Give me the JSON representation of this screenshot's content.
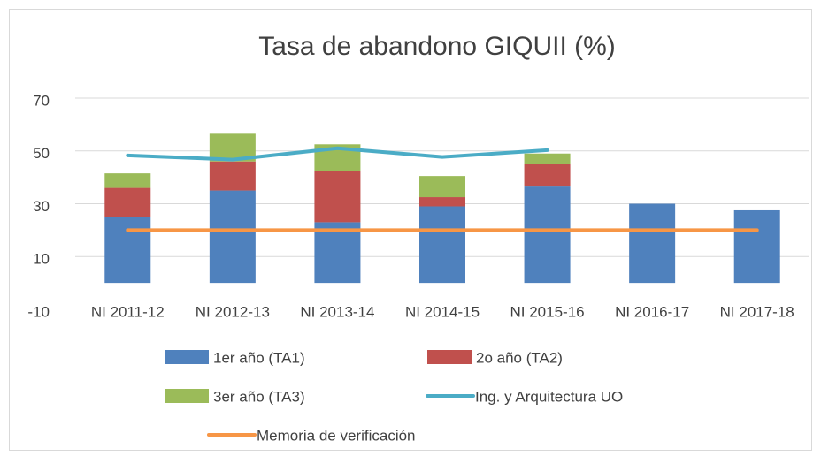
{
  "chart_data": {
    "type": "bar",
    "title": "Tasa de abandono GIQUII (%)",
    "categories": [
      "NI 2011-12",
      "NI 2012-13",
      "NI 2013-14",
      "NI 2014-15",
      "NI 2015-16",
      "NI 2016-17",
      "NI 2017-18"
    ],
    "series": [
      {
        "name": "1er año (TA1)",
        "type": "bar",
        "color": "#4f81bd",
        "values": [
          25,
          35,
          23,
          29,
          36.5,
          30,
          27.5
        ]
      },
      {
        "name": "2o año (TA2)",
        "type": "bar",
        "color": "#c0504d",
        "values": [
          11,
          11,
          19.5,
          3.5,
          8.5,
          null,
          null
        ]
      },
      {
        "name": "3er año (TA3)",
        "type": "bar",
        "color": "#9bbb59",
        "values": [
          5.5,
          10.5,
          10,
          8,
          4,
          null,
          null
        ]
      },
      {
        "name": "Ing. y Arquitectura UO",
        "type": "line",
        "color": "#4bacc6",
        "values": [
          48.3,
          46.7,
          51,
          47.7,
          50.3,
          null,
          null
        ]
      },
      {
        "name": "Memoria de verificación",
        "type": "line",
        "color": "#f79646",
        "values": [
          20,
          20,
          20,
          20,
          20,
          20,
          20
        ]
      }
    ],
    "ylim": [
      -10,
      70
    ],
    "yticks": [
      -10,
      10,
      30,
      50,
      70
    ],
    "grid": true
  }
}
